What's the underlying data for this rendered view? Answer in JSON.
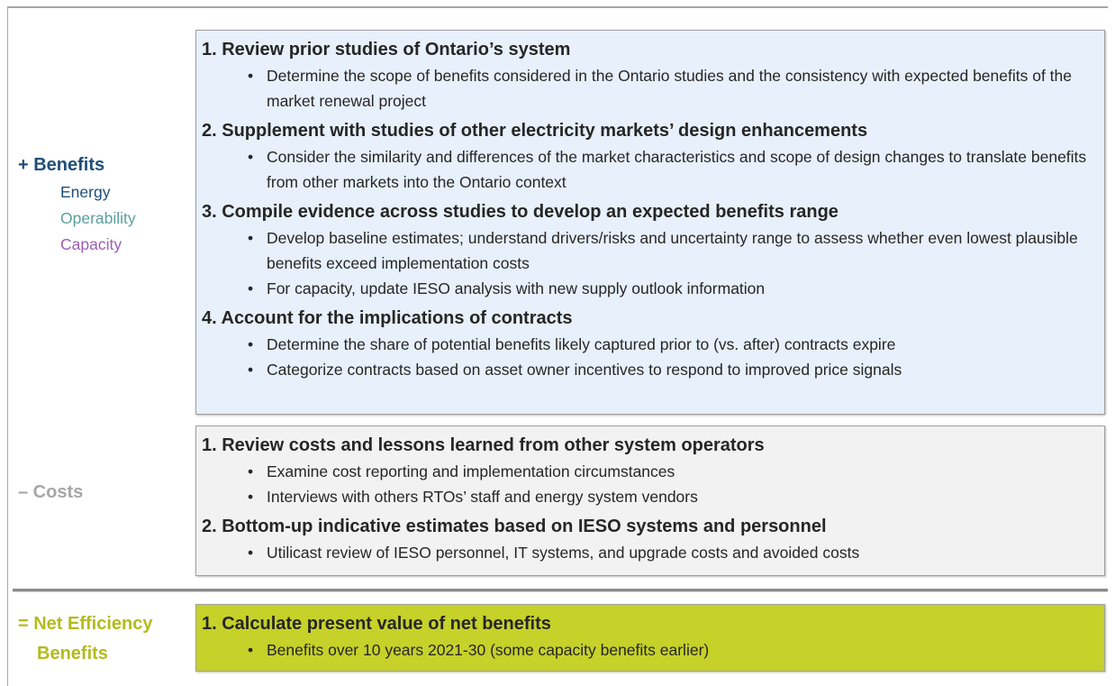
{
  "sections": [
    {
      "label": [
        "+ Benefits"
      ],
      "sublabels": [
        "Energy",
        "Operability",
        "Capacity"
      ],
      "items": [
        {
          "heading": "1.  Review prior studies of Ontario’s system",
          "bullets": [
            "Determine the scope of benefits considered in the Ontario studies and the consistency with expected benefits of the market renewal project"
          ]
        },
        {
          "heading": "2.  Supplement with studies of other electricity markets’ design enhancements",
          "bullets": [
            "Consider the similarity and differences of the market characteristics and scope of design changes to translate benefits from other markets into the Ontario context"
          ]
        },
        {
          "heading": "3.  Compile evidence across studies to develop an expected benefits range",
          "bullets": [
            "Develop baseline estimates; understand drivers/risks and uncertainty range to assess whether even lowest plausible benefits exceed implementation costs",
            "For capacity, update IESO analysis with new supply outlook information"
          ]
        },
        {
          "heading": "4.  Account for the implications of contracts",
          "bullets": [
            "Determine the share of potential benefits likely captured prior to (vs. after) contracts expire",
            "Categorize contracts based on asset owner incentives  to respond to improved price signals"
          ]
        }
      ]
    },
    {
      "label": [
        "– Costs"
      ],
      "items": [
        {
          "heading": "1.  Review costs and lessons learned from other system operators",
          "bullets": [
            "Examine cost reporting and implementation circumstances",
            "Interviews with others RTOs’ staff and energy system vendors"
          ]
        },
        {
          "heading": "2.  Bottom-up indicative estimates based on IESO systems and personnel",
          "bullets": [
            "Utilicast review of IESO personnel, IT systems, and upgrade costs and avoided costs"
          ]
        }
      ]
    },
    {
      "label": [
        "= Net Efficiency",
        "Benefits"
      ],
      "items": [
        {
          "heading": "1.  Calculate present value of net benefits",
          "bullets": [
            "Benefits over 10 years 2021-30 (some capacity benefits earlier)"
          ]
        }
      ]
    }
  ]
}
